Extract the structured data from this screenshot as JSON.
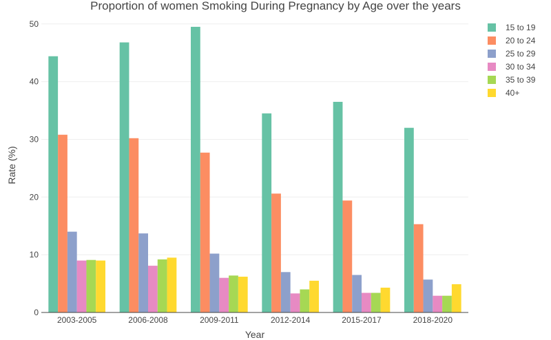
{
  "chart_data": {
    "type": "bar",
    "title": "Proportion of women Smoking During Pregnancy by Age over the years",
    "xlabel": "Year",
    "ylabel": "Rate (%)",
    "ylim": [
      0,
      52
    ],
    "yticks": [
      0,
      10,
      20,
      30,
      40,
      50
    ],
    "grid": true,
    "legend_position": "top-right",
    "categories": [
      "2003-2005",
      "2006-2008",
      "2009-2011",
      "2012-2014",
      "2015-2017",
      "2018-2020"
    ],
    "series": [
      {
        "name": "15 to 19",
        "color": "#66c2a5",
        "values": [
          44.4,
          46.8,
          49.5,
          34.5,
          36.5,
          32.0
        ]
      },
      {
        "name": "20 to 24",
        "color": "#fc8d62",
        "values": [
          30.8,
          30.2,
          27.7,
          20.6,
          19.4,
          15.3
        ]
      },
      {
        "name": "25 to 29",
        "color": "#8da0cb",
        "values": [
          14.0,
          13.7,
          10.2,
          7.0,
          6.5,
          5.7
        ]
      },
      {
        "name": "30 to 34",
        "color": "#e78ac3",
        "values": [
          9.0,
          8.1,
          6.0,
          3.3,
          3.4,
          2.9
        ]
      },
      {
        "name": "35 to 39",
        "color": "#a6d854",
        "values": [
          9.1,
          9.2,
          6.4,
          4.0,
          3.4,
          2.9
        ]
      },
      {
        "name": "40+",
        "color": "#ffd92f",
        "values": [
          9.0,
          9.5,
          6.2,
          5.5,
          4.3,
          4.9
        ]
      }
    ]
  }
}
